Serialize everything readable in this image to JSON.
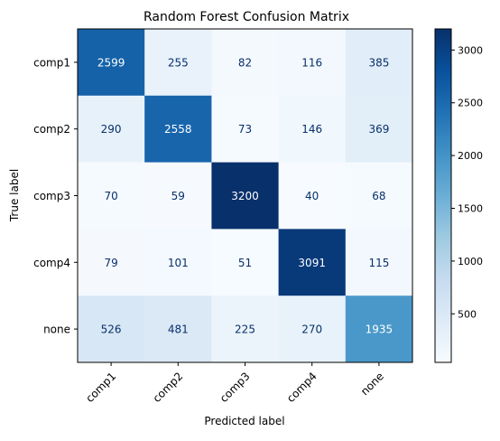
{
  "chart_data": {
    "type": "heatmap",
    "title": "Random Forest Confusion Matrix",
    "xlabel": "Predicted label",
    "ylabel": "True label",
    "x_categories": [
      "comp1",
      "comp2",
      "comp3",
      "comp4",
      "none"
    ],
    "y_categories": [
      "comp1",
      "comp2",
      "comp3",
      "comp4",
      "none"
    ],
    "values": [
      [
        2599,
        255,
        82,
        116,
        385
      ],
      [
        290,
        2558,
        73,
        146,
        369
      ],
      [
        70,
        59,
        3200,
        40,
        68
      ],
      [
        79,
        101,
        51,
        3091,
        115
      ],
      [
        526,
        481,
        225,
        270,
        1935
      ]
    ],
    "colormap": "Blues",
    "color_range": [
      40,
      3200
    ],
    "colorbar_ticks": [
      500,
      1000,
      1500,
      2000,
      2500,
      3000
    ]
  }
}
